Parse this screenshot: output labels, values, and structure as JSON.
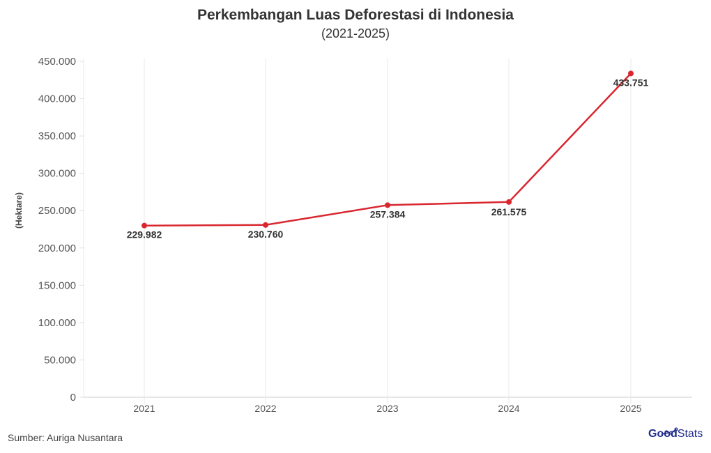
{
  "header": {
    "title": "Perkembangan Luas Deforestasi di Indonesia",
    "subtitle": "(2021-2025)"
  },
  "footer": {
    "source": "Sumber: Auriga Nusantara",
    "logo_part1": "Good",
    "logo_part2": "Stats"
  },
  "colors": {
    "line": "#d9262f",
    "grid": "#e8e8e8",
    "logo": "#1f2a8a"
  },
  "chart_data": {
    "type": "line",
    "title": "Perkembangan Luas Deforestasi di Indonesia",
    "subtitle": "(2021-2025)",
    "xlabel": "",
    "ylabel": "(Hektare)",
    "categories": [
      "2021",
      "2022",
      "2023",
      "2024",
      "2025"
    ],
    "values": [
      229982,
      230760,
      257384,
      261575,
      433751
    ],
    "data_labels": [
      "229.982",
      "230.760",
      "257.384",
      "261.575",
      "433.751"
    ],
    "ylim": [
      0,
      450000
    ],
    "y_ticks": [
      0,
      50000,
      100000,
      150000,
      200000,
      250000,
      300000,
      350000,
      400000,
      450000
    ],
    "y_tick_labels": [
      "0",
      "50.000",
      "100.000",
      "150.000",
      "200.000",
      "250.000",
      "300.000",
      "350.000",
      "400.000",
      "450.000"
    ],
    "grid": {
      "vertical": true,
      "horizontal": false
    },
    "legend": null
  }
}
